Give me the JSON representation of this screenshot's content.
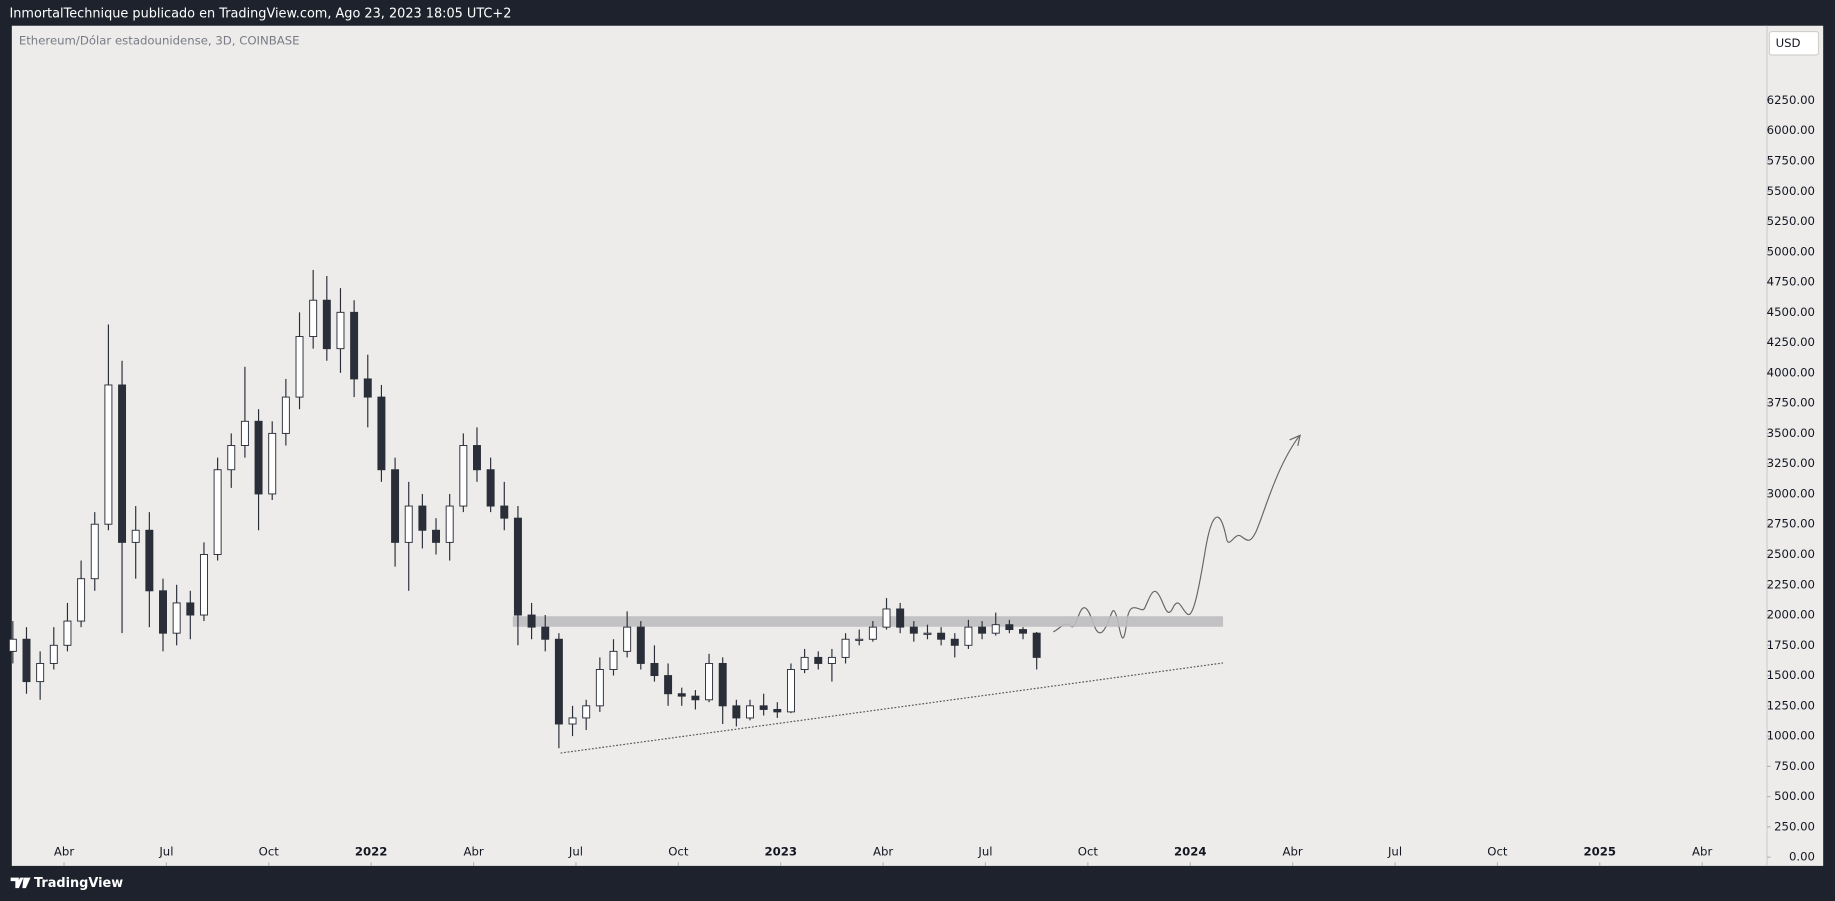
{
  "header": {
    "author": "InmortalTechnique publicado en TradingView.com, Ago 23, 2023 18:05 UTC+2"
  },
  "footer": {
    "brand": "TradingView"
  },
  "chart_data": {
    "type": "candlestick",
    "title": "Ethereum/Dólar estadounidense, 3D, COINBASE",
    "currency": "USD",
    "x": [
      1.5,
      1.9,
      2.3,
      2.7,
      3.1,
      3.5,
      3.9,
      4.3,
      4.7,
      5.1,
      5.5,
      5.9,
      6.3,
      6.7,
      7.1,
      7.5,
      7.9,
      8.3,
      8.7,
      9.1,
      9.5,
      9.9,
      10.3,
      10.7,
      11.1,
      11.5,
      11.9,
      12.3,
      12.7,
      13.1,
      13.5,
      13.9,
      14.3,
      14.7,
      15.1,
      15.5,
      15.9,
      16.3,
      16.7,
      17.1,
      17.5,
      17.9,
      18.3,
      18.7,
      19.1,
      19.5,
      19.9,
      20.3,
      20.7,
      21.1,
      21.5,
      21.9,
      22.3,
      22.7,
      23.1,
      23.5,
      23.9,
      24.3,
      24.7,
      25.1,
      25.5,
      25.9,
      26.3,
      26.7,
      27.1,
      27.5,
      27.9,
      28.3,
      28.7,
      29.1,
      29.5,
      29.9,
      30.3,
      30.7,
      31.1,
      31.5
    ],
    "open": [
      1700,
      1800,
      1450,
      1600,
      1750,
      1950,
      2300,
      2750,
      3900,
      2600,
      2700,
      2200,
      1850,
      2100,
      2000,
      2500,
      3200,
      3400,
      3600,
      3000,
      3500,
      3800,
      4300,
      4600,
      4200,
      4500,
      3950,
      3800,
      3200,
      2600,
      2900,
      2700,
      2600,
      2900,
      3400,
      3200,
      2900,
      2800,
      2000,
      1900,
      1800,
      1100,
      1150,
      1250,
      1550,
      1700,
      1900,
      1600,
      1500,
      1350,
      1330,
      1300,
      1600,
      1250,
      1150,
      1250,
      1220,
      1200,
      1550,
      1650,
      1600,
      1650,
      1800,
      1800,
      1900,
      2050,
      1900,
      1850,
      1850,
      1800,
      1750,
      1900,
      1850,
      1920,
      1880,
      1850
    ],
    "high": [
      1950,
      1900,
      1700,
      1900,
      2100,
      2450,
      2850,
      4400,
      4100,
      2900,
      2850,
      2300,
      2250,
      2200,
      2600,
      3300,
      3500,
      4050,
      3700,
      3600,
      3950,
      4500,
      4850,
      4800,
      4700,
      4600,
      4150,
      3900,
      3300,
      3100,
      3000,
      2800,
      3000,
      3500,
      3550,
      3300,
      3100,
      2900,
      2100,
      2000,
      1850,
      1250,
      1300,
      1650,
      1800,
      2030,
      1950,
      1750,
      1600,
      1400,
      1380,
      1680,
      1650,
      1300,
      1300,
      1350,
      1280,
      1600,
      1720,
      1700,
      1720,
      1850,
      1880,
      1950,
      2140,
      2100,
      1950,
      1920,
      1900,
      1850,
      1960,
      1950,
      2020,
      1960,
      1900,
      1860
    ],
    "low": [
      1600,
      1350,
      1300,
      1550,
      1700,
      1900,
      2200,
      2700,
      1850,
      2300,
      1900,
      1700,
      1750,
      1800,
      1950,
      2450,
      3050,
      3300,
      2700,
      2950,
      3400,
      3700,
      4200,
      4100,
      4000,
      3800,
      3550,
      3100,
      2400,
      2200,
      2550,
      2500,
      2450,
      2850,
      3100,
      2850,
      2700,
      1750,
      1800,
      1700,
      900,
      1000,
      1050,
      1200,
      1500,
      1650,
      1550,
      1450,
      1250,
      1250,
      1220,
      1280,
      1100,
      1080,
      1130,
      1170,
      1150,
      1190,
      1520,
      1550,
      1450,
      1600,
      1750,
      1780,
      1880,
      1850,
      1780,
      1800,
      1750,
      1650,
      1720,
      1800,
      1830,
      1850,
      1800,
      1550
    ],
    "close": [
      1800,
      1450,
      1600,
      1750,
      1950,
      2300,
      2750,
      3900,
      2600,
      2700,
      2200,
      1850,
      2100,
      2000,
      2500,
      3200,
      3400,
      3600,
      3000,
      3500,
      3800,
      4300,
      4600,
      4200,
      4500,
      3950,
      3800,
      3200,
      2600,
      2900,
      2700,
      2600,
      2900,
      3400,
      3200,
      2900,
      2800,
      2000,
      1900,
      1800,
      1100,
      1150,
      1250,
      1550,
      1700,
      1900,
      1600,
      1500,
      1350,
      1330,
      1300,
      1600,
      1250,
      1150,
      1250,
      1220,
      1200,
      1550,
      1650,
      1600,
      1650,
      1800,
      1800,
      1900,
      2050,
      1900,
      1850,
      1850,
      1800,
      1750,
      1900,
      1850,
      1920,
      1880,
      1850,
      1650
    ],
    "up_color": "#ffffff",
    "down_color": "#2a2e39",
    "wick_color": "#2a2e39",
    "xlim": [
      1.47,
      52.9
    ],
    "ylim": [
      -72,
      6867
    ],
    "xticks": [
      {
        "value": 3,
        "label": "Abr"
      },
      {
        "value": 6,
        "label": "Jul"
      },
      {
        "value": 9,
        "label": "Oct"
      },
      {
        "value": 12,
        "label": "2022"
      },
      {
        "value": 15,
        "label": "Abr"
      },
      {
        "value": 18,
        "label": "Jul"
      },
      {
        "value": 21,
        "label": "Oct"
      },
      {
        "value": 24,
        "label": "2023"
      },
      {
        "value": 27,
        "label": "Abr"
      },
      {
        "value": 30,
        "label": "Jul"
      },
      {
        "value": 33,
        "label": "Oct"
      },
      {
        "value": 36,
        "label": "2024"
      },
      {
        "value": 39,
        "label": "Abr"
      },
      {
        "value": 42,
        "label": "Jul"
      },
      {
        "value": 45,
        "label": "Oct"
      },
      {
        "value": 48,
        "label": "2025"
      },
      {
        "value": 51,
        "label": "Abr"
      }
    ],
    "yticks": [
      {
        "value": 0,
        "label": "0.00"
      },
      {
        "value": 250,
        "label": "250.00"
      },
      {
        "value": 500,
        "label": "500.00"
      },
      {
        "value": 750,
        "label": "750.00"
      },
      {
        "value": 1000,
        "label": "1000.00"
      },
      {
        "value": 1250,
        "label": "1250.00"
      },
      {
        "value": 1500,
        "label": "1500.00"
      },
      {
        "value": 1750,
        "label": "1750.00"
      },
      {
        "value": 2000,
        "label": "2000.00"
      },
      {
        "value": 2250,
        "label": "2250.00"
      },
      {
        "value": 2500,
        "label": "2500.00"
      },
      {
        "value": 2750,
        "label": "2750.00"
      },
      {
        "value": 3000,
        "label": "3000.00"
      },
      {
        "value": 3250,
        "label": "3250.00"
      },
      {
        "value": 3500,
        "label": "3500.00"
      },
      {
        "value": 3750,
        "label": "3750.00"
      },
      {
        "value": 4000,
        "label": "4000.00"
      },
      {
        "value": 4250,
        "label": "4250.00"
      },
      {
        "value": 4500,
        "label": "4500.00"
      },
      {
        "value": 4750,
        "label": "4750.00"
      },
      {
        "value": 5000,
        "label": "5000.00"
      },
      {
        "value": 5250,
        "label": "5250.00"
      },
      {
        "value": 5500,
        "label": "5500.00"
      },
      {
        "value": 5750,
        "label": "5750.00"
      },
      {
        "value": 6000,
        "label": "6000.00"
      },
      {
        "value": 6250,
        "label": "6250.00"
      }
    ],
    "zone": {
      "x": [
        16.15,
        36.96
      ],
      "y": [
        1903,
        1990
      ],
      "color": "#bdbcbf"
    },
    "trendline": {
      "x": [
        17.55,
        36.96
      ],
      "y": [
        860,
        1604
      ],
      "color": "#555555"
    }
  }
}
